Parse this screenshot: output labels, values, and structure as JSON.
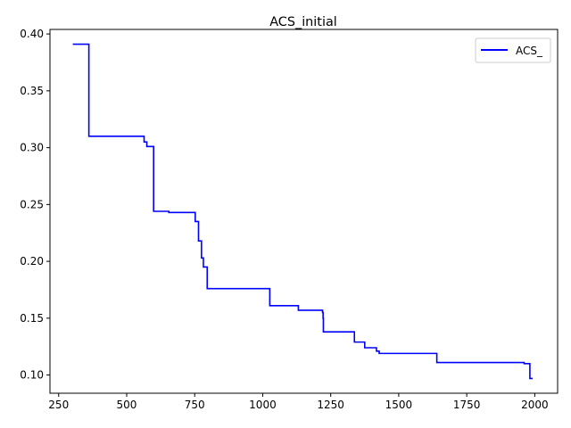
{
  "chart_data": {
    "type": "line",
    "title": "ACS_initial",
    "xlabel": "",
    "ylabel": "",
    "xlim": [
      218,
      2084
    ],
    "ylim": [
      0.084,
      0.404
    ],
    "xticks": [
      250,
      500,
      750,
      1000,
      1250,
      1500,
      1750,
      2000
    ],
    "xtick_labels": [
      "250",
      "500",
      "750",
      "1000",
      "1250",
      "1500",
      "1750",
      "2000"
    ],
    "yticks": [
      0.1,
      0.15,
      0.2,
      0.25,
      0.3,
      0.35,
      0.4
    ],
    "ytick_labels": [
      "0.10",
      "0.15",
      "0.20",
      "0.25",
      "0.30",
      "0.35",
      "0.40"
    ],
    "grid": false,
    "legend": {
      "placement": "top-right"
    },
    "series": [
      {
        "name": "ACS_",
        "color": "#0000ff",
        "drawstyle": "steps-post",
        "x": [
          302,
          361,
          564,
          574,
          599,
          655,
          752,
          764,
          775,
          782,
          796,
          1026,
          1131,
          1220,
          1222,
          1223,
          1337,
          1375,
          1418,
          1428,
          1640,
          1961,
          1982,
          1992
        ],
        "y": [
          0.391,
          0.31,
          0.305,
          0.301,
          0.244,
          0.243,
          0.235,
          0.218,
          0.203,
          0.195,
          0.176,
          0.161,
          0.157,
          0.155,
          0.15,
          0.138,
          0.129,
          0.124,
          0.121,
          0.119,
          0.111,
          0.11,
          0.097,
          0.097
        ]
      }
    ]
  }
}
